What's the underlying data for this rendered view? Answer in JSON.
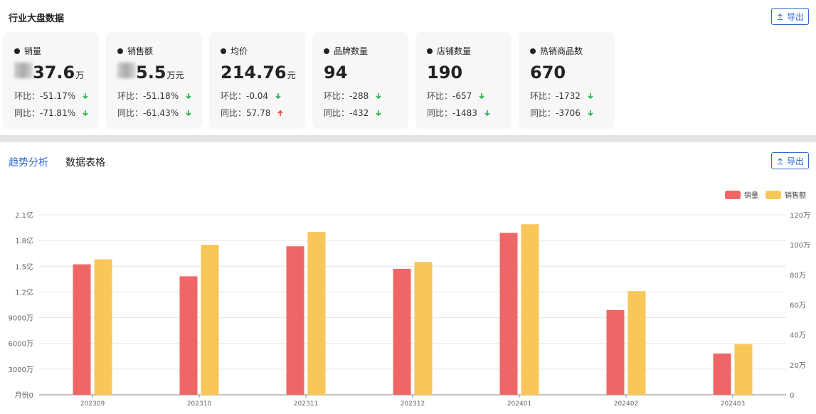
{
  "header": {
    "title": "行业大盘数据",
    "export_label": "导出"
  },
  "cards": [
    {
      "title": "销量",
      "value": "37.6",
      "value_masked": true,
      "unit": "万",
      "hb_label": "环比：",
      "hb_value": "-51.17%",
      "hb_dir": "down",
      "tb_label": "同比：",
      "tb_value": "-71.81%",
      "tb_dir": "down"
    },
    {
      "title": "销售额",
      "value": "5.5",
      "value_masked": true,
      "unit": "万元",
      "hb_label": "环比：",
      "hb_value": "-51.18%",
      "hb_dir": "down",
      "tb_label": "同比：",
      "tb_value": "-61.43%",
      "tb_dir": "down"
    },
    {
      "title": "均价",
      "value": "214.76",
      "value_masked": false,
      "unit": "元",
      "hb_label": "环比：",
      "hb_value": "-0.04",
      "hb_dir": "down",
      "tb_label": "同比：",
      "tb_value": "57.78",
      "tb_dir": "up"
    },
    {
      "title": "品牌数量",
      "value": "94",
      "value_masked": false,
      "unit": "",
      "hb_label": "环比：",
      "hb_value": "-288",
      "hb_dir": "down",
      "tb_label": "同比：",
      "tb_value": "-432",
      "tb_dir": "down"
    },
    {
      "title": "店铺数量",
      "value": "190",
      "value_masked": false,
      "unit": "",
      "hb_label": "环比：",
      "hb_value": "-657",
      "hb_dir": "down",
      "tb_label": "同比：",
      "tb_value": "-1483",
      "tb_dir": "down"
    },
    {
      "title": "热销商品数",
      "value": "670",
      "value_masked": false,
      "unit": "",
      "hb_label": "环比：",
      "hb_value": "-1732",
      "hb_dir": "down",
      "tb_label": "同比：",
      "tb_value": "-3706",
      "tb_dir": "down"
    }
  ],
  "tabs": [
    {
      "label": "趋势分析",
      "active": true
    },
    {
      "label": "数据表格",
      "active": false
    }
  ],
  "colors": {
    "accent": "#2f6bd0",
    "down": "#1fb34a",
    "up": "#e8403a",
    "series_sales": "#ef6667",
    "series_revenue": "#f8c659"
  },
  "chart_data": {
    "type": "bar",
    "categories": [
      "202309",
      "202310",
      "202311",
      "202312",
      "202401",
      "202402",
      "202403"
    ],
    "series": [
      {
        "name": "销量",
        "axis": "right",
        "values": [
          870000,
          790000,
          990000,
          840000,
          1080000,
          565000,
          275000
        ]
      },
      {
        "name": "销售额",
        "axis": "left",
        "values": [
          158000000,
          175000000,
          190000000,
          155000000,
          199000000,
          121000000,
          59000000
        ]
      }
    ],
    "y_left": {
      "min": 0,
      "max": 210000000,
      "ticks": [
        "月份0",
        "3000万",
        "6000万",
        "9000万",
        "1.2亿",
        "1.5亿",
        "1.8亿",
        "2.1亿"
      ]
    },
    "y_right": {
      "min": 0,
      "max": 1200000,
      "ticks": [
        "0",
        "20万",
        "40万",
        "60万",
        "80万",
        "100万",
        "120万"
      ]
    },
    "legend_position": "top-right",
    "grid": true
  }
}
